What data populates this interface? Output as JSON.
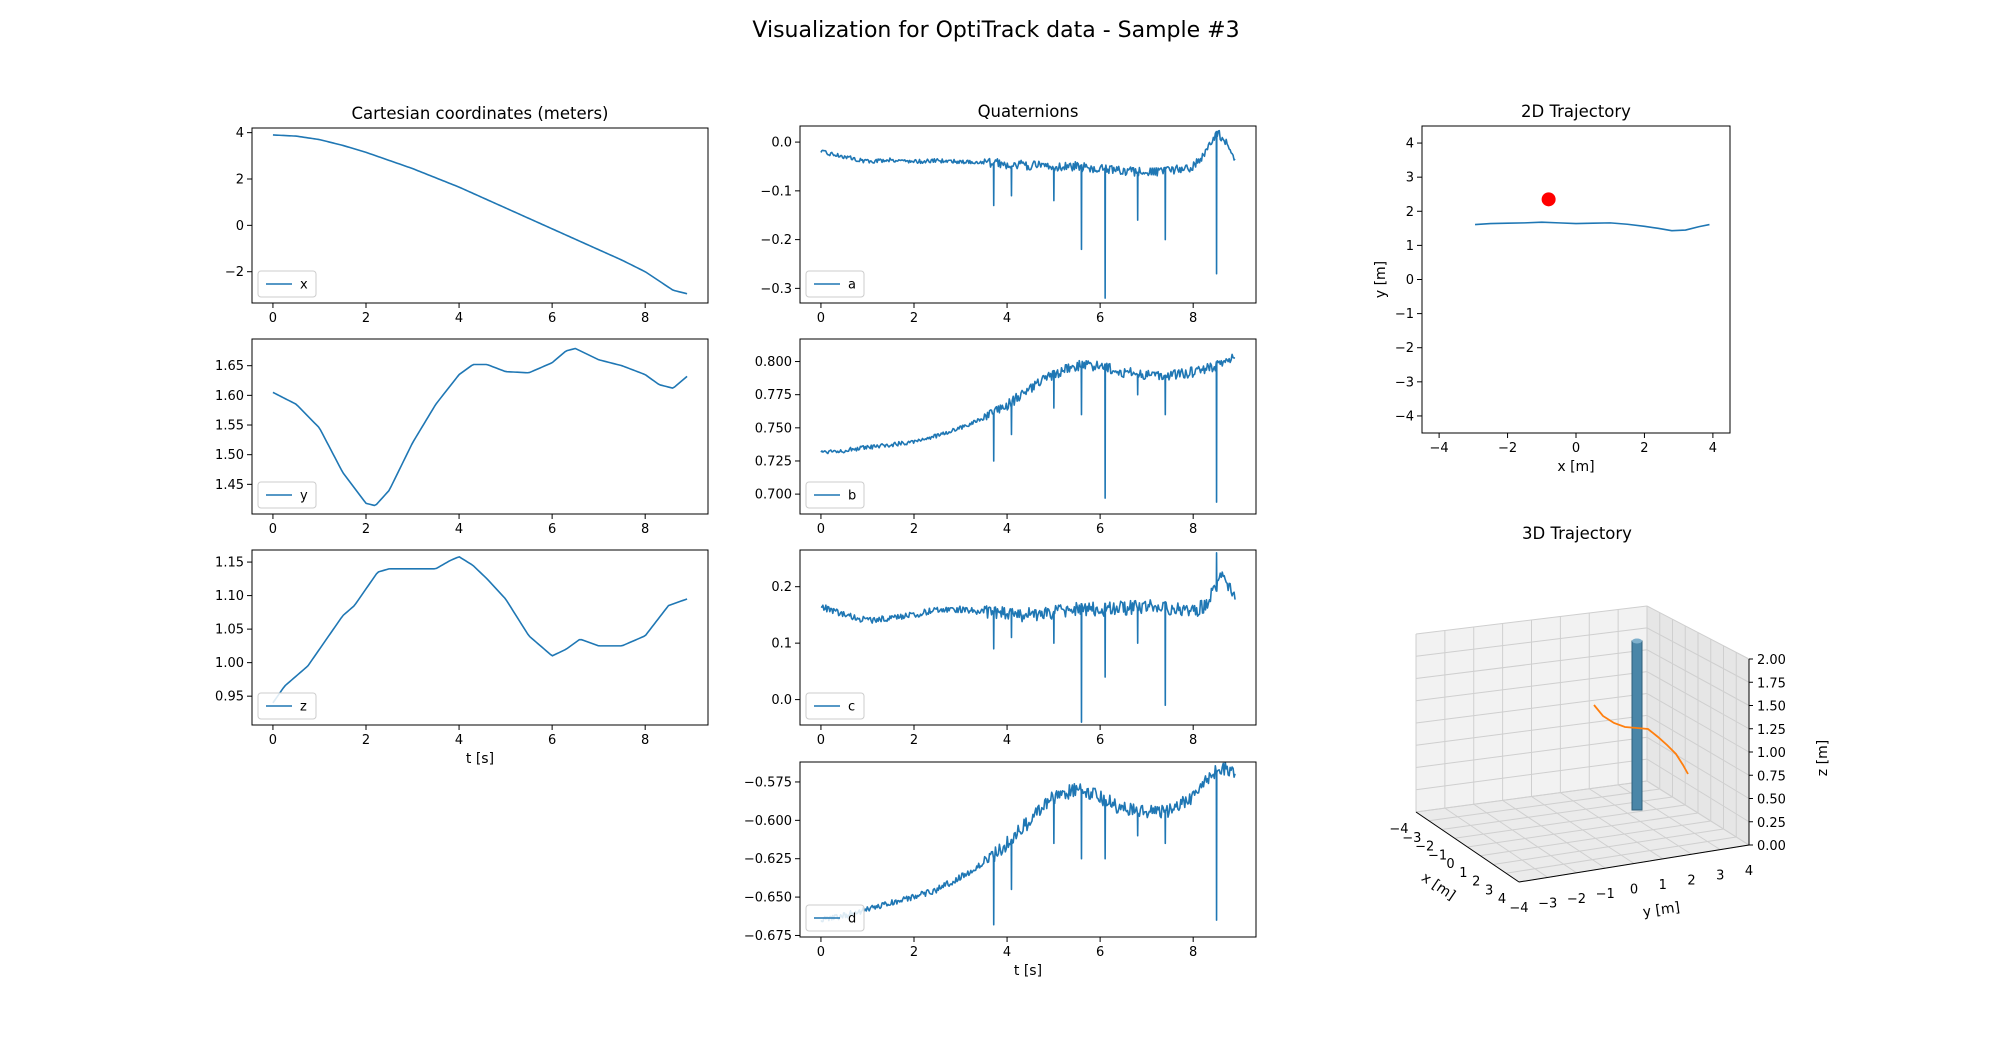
{
  "figure": {
    "title": "Visualization for OptiTrack data - Sample #3"
  },
  "colors": {
    "series": "#1f77b4",
    "trajectory3d": "#ff7f0e",
    "start_marker": "#ff0000",
    "pillar": "#4a86a8",
    "axes": "#000000"
  },
  "chart_data": [
    {
      "id": "x",
      "type": "line",
      "title": "Cartesian coordinates (meters)",
      "xlabel": "",
      "ylabel": "",
      "xlim": [
        -0.45,
        9.35
      ],
      "ylim": [
        -3.35,
        4.2
      ],
      "xticks": [
        0,
        2,
        4,
        6,
        8
      ],
      "yticks": [
        -2,
        0,
        2,
        4
      ],
      "legend": "lower left",
      "series": [
        {
          "name": "x",
          "x": [
            0,
            0.5,
            1,
            1.5,
            2,
            2.5,
            3,
            3.5,
            4,
            4.5,
            5,
            5.5,
            6,
            6.5,
            7,
            7.5,
            8,
            8.3,
            8.6,
            8.9
          ],
          "y": [
            3.9,
            3.85,
            3.7,
            3.45,
            3.15,
            2.8,
            2.45,
            2.05,
            1.65,
            1.2,
            0.75,
            0.3,
            -0.15,
            -0.6,
            -1.05,
            -1.5,
            -2.0,
            -2.4,
            -2.8,
            -2.95
          ]
        }
      ]
    },
    {
      "id": "y",
      "type": "line",
      "title": "",
      "xlabel": "",
      "ylabel": "",
      "xlim": [
        -0.45,
        9.35
      ],
      "ylim": [
        1.4,
        1.695
      ],
      "xticks": [
        0,
        2,
        4,
        6,
        8
      ],
      "yticks": [
        1.45,
        1.5,
        1.55,
        1.6,
        1.65
      ],
      "legend": "lower left",
      "series": [
        {
          "name": "y",
          "x": [
            0,
            0.5,
            1,
            1.5,
            2,
            2.2,
            2.5,
            3,
            3.5,
            4,
            4.3,
            4.6,
            5,
            5.5,
            6,
            6.3,
            6.5,
            7,
            7.5,
            8,
            8.3,
            8.6,
            8.9
          ],
          "y": [
            1.605,
            1.585,
            1.545,
            1.47,
            1.418,
            1.414,
            1.44,
            1.52,
            1.585,
            1.635,
            1.652,
            1.652,
            1.64,
            1.638,
            1.655,
            1.675,
            1.679,
            1.66,
            1.65,
            1.635,
            1.618,
            1.612,
            1.632
          ]
        }
      ]
    },
    {
      "id": "z",
      "type": "line",
      "title": "",
      "xlabel": "t [s]",
      "ylabel": "",
      "xlim": [
        -0.45,
        9.35
      ],
      "ylim": [
        0.907,
        1.168
      ],
      "xticks": [
        0,
        2,
        4,
        6,
        8
      ],
      "yticks": [
        0.95,
        1.0,
        1.05,
        1.1,
        1.15
      ],
      "legend": "lower left",
      "series": [
        {
          "name": "z",
          "x": [
            0,
            0.25,
            0.5,
            0.75,
            1,
            1.25,
            1.5,
            1.75,
            2,
            2.25,
            2.5,
            3,
            3.5,
            3.8,
            4,
            4.3,
            4.6,
            5,
            5.5,
            6,
            6.3,
            6.6,
            7,
            7.5,
            8,
            8.5,
            8.9
          ],
          "y": [
            0.94,
            0.965,
            0.98,
            0.995,
            1.02,
            1.045,
            1.07,
            1.085,
            1.11,
            1.135,
            1.14,
            1.14,
            1.14,
            1.152,
            1.158,
            1.145,
            1.125,
            1.095,
            1.04,
            1.01,
            1.02,
            1.035,
            1.025,
            1.025,
            1.04,
            1.085,
            1.095
          ]
        }
      ]
    },
    {
      "id": "a",
      "type": "line",
      "title": "Quaternions",
      "xlabel": "",
      "ylabel": "",
      "xlim": [
        -0.45,
        9.35
      ],
      "ylim": [
        -0.33,
        0.033
      ],
      "xticks": [
        0,
        2,
        4,
        6,
        8
      ],
      "yticks": [
        -0.3,
        -0.2,
        -0.1,
        0.0
      ],
      "legend": "lower left",
      "series": [
        {
          "name": "a",
          "x": [
            0,
            0.5,
            1,
            1.5,
            2,
            2.5,
            3,
            3.5,
            4,
            4.5,
            5,
            5.5,
            6,
            6.5,
            7,
            7.5,
            8,
            8.3,
            8.5,
            8.7,
            8.9
          ],
          "y": [
            -0.02,
            -0.03,
            -0.04,
            -0.036,
            -0.04,
            -0.038,
            -0.04,
            -0.042,
            -0.045,
            -0.048,
            -0.05,
            -0.05,
            -0.055,
            -0.06,
            -0.062,
            -0.06,
            -0.05,
            -0.02,
            0.02,
            0.0,
            -0.035
          ],
          "spikes": [
            [
              3.7,
              -0.13
            ],
            [
              4.1,
              -0.11
            ],
            [
              5.0,
              -0.12
            ],
            [
              5.6,
              -0.22
            ],
            [
              6.1,
              -0.32
            ],
            [
              6.8,
              -0.16
            ],
            [
              7.4,
              -0.2
            ],
            [
              8.5,
              -0.27
            ]
          ],
          "noise": 0.006
        }
      ]
    },
    {
      "id": "b",
      "type": "line",
      "title": "",
      "xlabel": "",
      "ylabel": "",
      "xlim": [
        -0.45,
        9.35
      ],
      "ylim": [
        0.685,
        0.817
      ],
      "xticks": [
        0,
        2,
        4,
        6,
        8
      ],
      "yticks": [
        0.7,
        0.725,
        0.75,
        0.775,
        0.8
      ],
      "legend": "lower left",
      "series": [
        {
          "name": "b",
          "x": [
            0,
            0.5,
            1,
            1.5,
            2,
            2.5,
            3,
            3.5,
            4,
            4.5,
            5,
            5.5,
            6,
            6.5,
            7,
            7.5,
            8,
            8.5,
            8.9
          ],
          "y": [
            0.732,
            0.733,
            0.735,
            0.737,
            0.74,
            0.744,
            0.75,
            0.757,
            0.767,
            0.78,
            0.79,
            0.797,
            0.797,
            0.792,
            0.79,
            0.79,
            0.792,
            0.797,
            0.803
          ],
          "spikes": [
            [
              3.7,
              0.725
            ],
            [
              4.1,
              0.745
            ],
            [
              5.0,
              0.765
            ],
            [
              5.6,
              0.76
            ],
            [
              6.1,
              0.697
            ],
            [
              6.8,
              0.775
            ],
            [
              7.4,
              0.76
            ],
            [
              8.5,
              0.694
            ]
          ],
          "noise": 0.0025
        }
      ]
    },
    {
      "id": "c",
      "type": "line",
      "title": "",
      "xlabel": "",
      "ylabel": "",
      "xlim": [
        -0.45,
        9.35
      ],
      "ylim": [
        -0.045,
        0.265
      ],
      "xticks": [
        0,
        2,
        4,
        6,
        8
      ],
      "yticks": [
        0.0,
        0.1,
        0.2
      ],
      "legend": "lower left",
      "series": [
        {
          "name": "c",
          "x": [
            0,
            0.5,
            1,
            1.5,
            2,
            2.5,
            3,
            3.5,
            4,
            4.5,
            5,
            5.5,
            6,
            6.5,
            7,
            7.5,
            8,
            8.3,
            8.6,
            8.9
          ],
          "y": [
            0.165,
            0.15,
            0.14,
            0.145,
            0.15,
            0.16,
            0.16,
            0.155,
            0.152,
            0.15,
            0.155,
            0.16,
            0.16,
            0.162,
            0.165,
            0.16,
            0.155,
            0.17,
            0.22,
            0.18
          ],
          "spikes": [
            [
              3.7,
              0.09
            ],
            [
              4.1,
              0.11
            ],
            [
              5.0,
              0.1
            ],
            [
              5.6,
              -0.04
            ],
            [
              6.1,
              0.04
            ],
            [
              6.8,
              0.1
            ],
            [
              7.4,
              -0.01
            ],
            [
              8.5,
              0.26
            ]
          ],
          "noise": 0.008
        }
      ]
    },
    {
      "id": "d",
      "type": "line",
      "title": "",
      "xlabel": "t [s]",
      "ylabel": "",
      "xlim": [
        -0.45,
        9.35
      ],
      "ylim": [
        -0.676,
        -0.562
      ],
      "xticks": [
        0,
        2,
        4,
        6,
        8
      ],
      "yticks": [
        -0.675,
        -0.65,
        -0.625,
        -0.6,
        -0.575
      ],
      "legend": "lower left",
      "series": [
        {
          "name": "d",
          "x": [
            0,
            0.5,
            1,
            1.5,
            2,
            2.5,
            3,
            3.5,
            4,
            4.5,
            5,
            5.5,
            6,
            6.5,
            7,
            7.5,
            8,
            8.3,
            8.6,
            8.9
          ],
          "y": [
            -0.665,
            -0.662,
            -0.658,
            -0.654,
            -0.65,
            -0.645,
            -0.637,
            -0.628,
            -0.615,
            -0.6,
            -0.585,
            -0.58,
            -0.585,
            -0.593,
            -0.595,
            -0.593,
            -0.585,
            -0.572,
            -0.565,
            -0.568
          ],
          "spikes": [
            [
              3.7,
              -0.668
            ],
            [
              4.1,
              -0.645
            ],
            [
              5.0,
              -0.615
            ],
            [
              5.6,
              -0.625
            ],
            [
              6.1,
              -0.625
            ],
            [
              6.8,
              -0.61
            ],
            [
              7.4,
              -0.615
            ],
            [
              8.5,
              -0.665
            ]
          ],
          "noise": 0.003
        }
      ]
    },
    {
      "id": "traj2d",
      "type": "line",
      "title": "2D Trajectory",
      "xlabel": "x [m]",
      "ylabel": "y [m]",
      "xlim": [
        -4.5,
        4.5
      ],
      "ylim": [
        -4.5,
        4.5
      ],
      "xticks": [
        -4,
        -2,
        0,
        2,
        4
      ],
      "yticks": [
        -4,
        -3,
        -2,
        -1,
        0,
        1,
        2,
        3,
        4
      ],
      "series": [
        {
          "name": "",
          "x": [
            3.9,
            3.6,
            3.2,
            2.8,
            2.4,
            2.0,
            1.5,
            1.0,
            0.5,
            0.0,
            -0.5,
            -1.0,
            -1.5,
            -2.0,
            -2.5,
            -2.95
          ],
          "y": [
            1.61,
            1.55,
            1.45,
            1.43,
            1.5,
            1.56,
            1.62,
            1.66,
            1.65,
            1.64,
            1.66,
            1.68,
            1.66,
            1.65,
            1.64,
            1.61
          ]
        }
      ],
      "marker": {
        "x": -0.8,
        "y": 2.35
      }
    },
    {
      "id": "traj3d",
      "type": "line",
      "title": "3D Trajectory",
      "xlabel": "x [m]",
      "ylabel": "y [m]",
      "zlabel": "z [m]",
      "xticks": [
        -4,
        -3,
        -2,
        -1,
        0,
        1,
        2,
        3,
        4
      ],
      "xtick_labels": [
        "−4",
        "−3",
        "−2",
        "−1",
        "0",
        "1",
        "2",
        "3",
        "4"
      ],
      "yticks": [
        -4,
        -3,
        -2,
        -1,
        0,
        1,
        2,
        3,
        4
      ],
      "ztick_labels": [
        "0.00",
        "0.25",
        "0.50",
        "0.75",
        "1.00",
        "1.25",
        "1.50",
        "1.75",
        "2.00"
      ]
    }
  ]
}
